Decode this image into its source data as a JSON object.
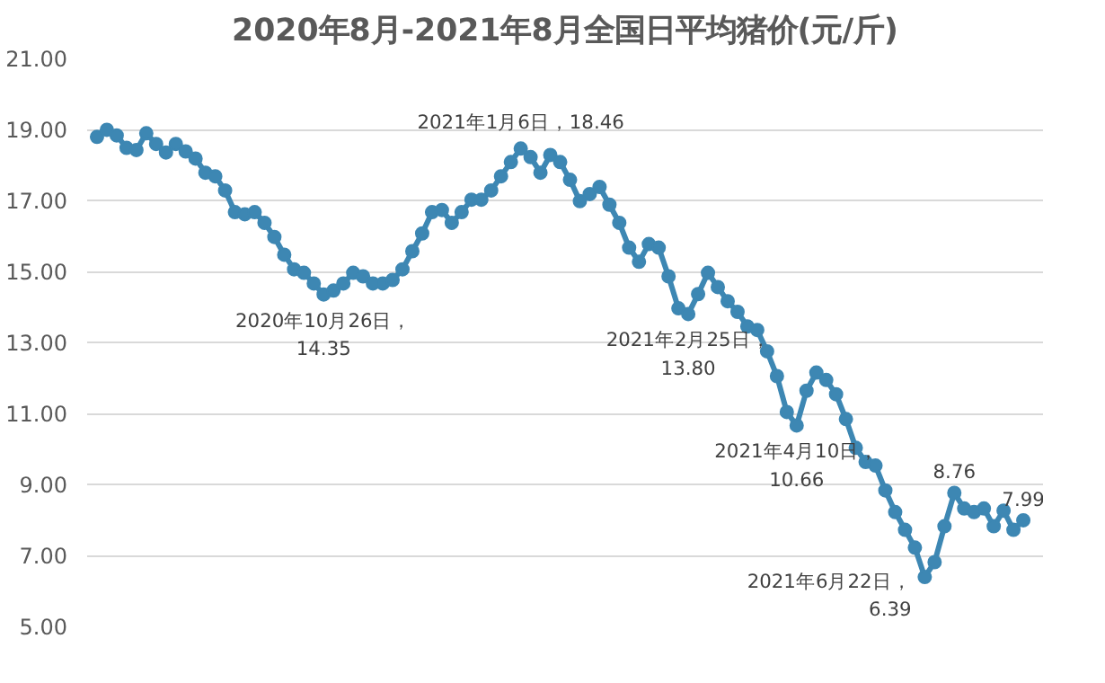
{
  "chart_data": {
    "type": "line",
    "title": "2020年8月-2021年8月全国日平均猪价(元/斤)",
    "categories": [
      null,
      null,
      null,
      null,
      null,
      null,
      null,
      null,
      null,
      null,
      null,
      null,
      null,
      null,
      null,
      null,
      null,
      null,
      null,
      null,
      null,
      null,
      null,
      null,
      null,
      null,
      null,
      null,
      null,
      null,
      null,
      null,
      null,
      null,
      null,
      null,
      null,
      null,
      null,
      null,
      null,
      null,
      null,
      null,
      null,
      null,
      null,
      null,
      null,
      null,
      null,
      null,
      null,
      null,
      null,
      null,
      null,
      null,
      null,
      null,
      null,
      null,
      null,
      null,
      null,
      null,
      null,
      null,
      null,
      null,
      null,
      null,
      null,
      null,
      null,
      null,
      null,
      null,
      null,
      null,
      null,
      null,
      null,
      null,
      null,
      null,
      null,
      null,
      null,
      null,
      null,
      null,
      null,
      null,
      null
    ],
    "series": [
      {
        "color": "#3d87b3",
        "values": [
          18.79,
          18.99,
          18.83,
          18.48,
          18.42,
          18.89,
          18.59,
          18.35,
          18.59,
          18.38,
          18.18,
          17.78,
          17.68,
          17.28,
          16.67,
          16.61,
          16.67,
          16.37,
          15.97,
          15.47,
          15.06,
          14.96,
          14.66,
          14.35,
          14.46,
          14.66,
          14.96,
          14.86,
          14.66,
          14.66,
          14.76,
          15.06,
          15.57,
          16.07,
          16.67,
          16.73,
          16.37,
          16.67,
          17.02,
          17.02,
          17.28,
          17.68,
          18.08,
          18.46,
          18.22,
          17.78,
          18.28,
          18.08,
          17.58,
          16.98,
          17.18,
          17.38,
          16.88,
          16.37,
          15.67,
          15.27,
          15.77,
          15.67,
          14.86,
          13.96,
          13.8,
          14.36,
          14.96,
          14.56,
          14.16,
          13.86,
          13.45,
          13.35,
          12.75,
          12.05,
          11.04,
          10.66,
          11.64,
          12.15,
          11.94,
          11.54,
          10.84,
          10.03,
          9.63,
          9.53,
          8.83,
          8.22,
          7.72,
          7.22,
          6.39,
          6.81,
          7.82,
          8.76,
          8.32,
          8.22,
          8.32,
          7.82,
          8.26,
          7.72,
          7.99
        ]
      }
    ],
    "marker": "circle",
    "grid": "y",
    "tick_labels": "y",
    "ylim": [
      5,
      21
    ],
    "yticks": [
      {
        "value": 5,
        "label": "5.00"
      },
      {
        "value": 7,
        "label": "7.00"
      },
      {
        "value": 9,
        "label": "9.00"
      },
      {
        "value": 11,
        "label": "11.00"
      },
      {
        "value": 13,
        "label": "13.00"
      },
      {
        "value": 15,
        "label": "15.00"
      },
      {
        "value": 17,
        "label": "17.00"
      },
      {
        "value": 19,
        "label": "19.00"
      },
      {
        "value": 21,
        "label": "21.00"
      }
    ],
    "annotations": [
      {
        "text": "2020年10月26日，\n14.35",
        "y": 14.35
      },
      {
        "text": "2021年1月6日，18.46",
        "y": 18.46
      },
      {
        "text": "2021年2月25日，\n13.80",
        "y": 13.8
      },
      {
        "text": "2021年4月10日，\n10.66",
        "y": 10.66
      },
      "2021年6月22日，\n6.39",
      {
        "text": "8.76",
        "y": 8.76
      },
      {
        "text": "7.99",
        "y": 7.99
      }
    ]
  }
}
